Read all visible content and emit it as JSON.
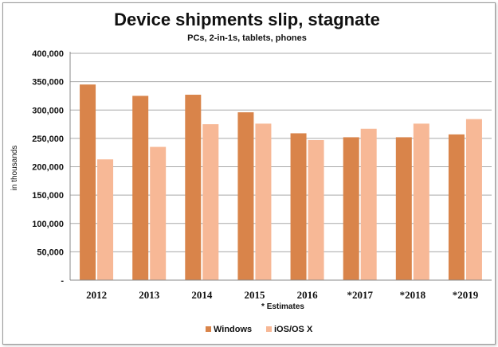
{
  "chart_data": {
    "type": "bar",
    "title": "Device shipments slip, stagnate",
    "subtitle": "PCs, 2-in-1s, tablets, phones",
    "ylabel": "in thousands",
    "xlabel": "",
    "note": "* Estimates",
    "categories": [
      "2012",
      "2013",
      "2014",
      "2015",
      "2016",
      "*2017",
      "*2018",
      "*2019"
    ],
    "series": [
      {
        "name": "Windows",
        "color": "#d9844a",
        "values": [
          345000,
          325000,
          327000,
          296000,
          259000,
          252000,
          252000,
          257000
        ]
      },
      {
        "name": "iOS/OS X",
        "color": "#f7b896",
        "values": [
          213000,
          235000,
          275000,
          276000,
          247000,
          267000,
          276000,
          284000
        ]
      }
    ],
    "ylim": [
      0,
      400000
    ],
    "yticks": [
      0,
      50000,
      100000,
      150000,
      200000,
      250000,
      300000,
      350000,
      400000
    ],
    "ytick_labels": [
      "-",
      "50,000",
      "100,000",
      "150,000",
      "200,000",
      "250,000",
      "300,000",
      "350,000",
      "400,000"
    ],
    "grid": true,
    "legend_position": "bottom"
  }
}
